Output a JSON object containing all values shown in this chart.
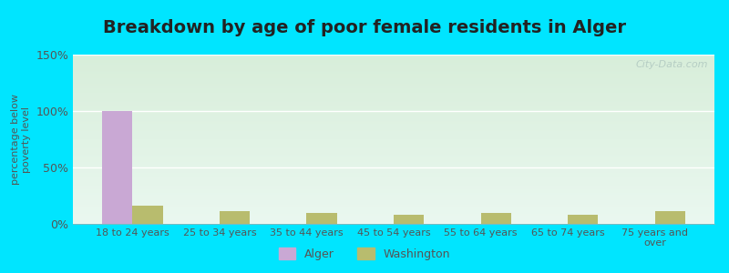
{
  "title": "Breakdown by age of poor female residents in Alger",
  "ylabel": "percentage below\npoverty level",
  "categories": [
    "18 to 24 years",
    "25 to 34 years",
    "35 to 44 years",
    "45 to 54 years",
    "55 to 64 years",
    "65 to 74 years",
    "75 years and\nover"
  ],
  "alger_values": [
    100,
    0,
    0,
    0,
    0,
    0,
    0
  ],
  "washington_values": [
    16,
    11,
    10,
    8,
    10,
    8,
    11
  ],
  "alger_color": "#c9a8d4",
  "washington_color": "#b8bc6e",
  "ylim": [
    0,
    150
  ],
  "yticks": [
    0,
    50,
    100,
    150
  ],
  "ytick_labels": [
    "0%",
    "50%",
    "100%",
    "150%"
  ],
  "bar_width": 0.35,
  "title_fontsize": 14,
  "axis_bg_color_top": "#e8f5ee",
  "axis_bg_color_bottom": "#d4eedc",
  "outer_bg_color": "#00e5ff",
  "watermark": "City-Data.com",
  "grid_color": "#ffffff",
  "tick_color": "#555555",
  "title_color": "#222222"
}
